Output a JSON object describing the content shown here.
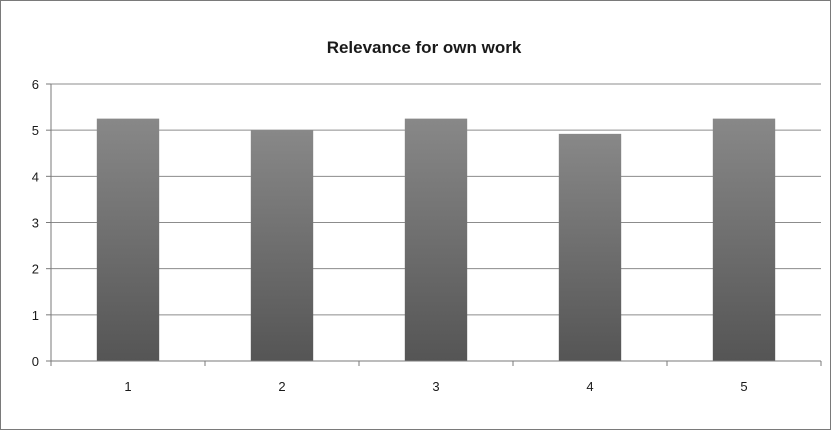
{
  "chart_data": {
    "type": "bar",
    "title": "Relevance for own work",
    "xlabel": "",
    "ylabel": "",
    "categories": [
      "1",
      "2",
      "3",
      "4",
      "5"
    ],
    "values": [
      5.25,
      5.0,
      5.25,
      4.92,
      5.25
    ],
    "ylim": [
      0,
      6
    ],
    "yticks": [
      "0",
      "1",
      "2",
      "3",
      "4",
      "5",
      "6"
    ],
    "grid": true,
    "legend": "none",
    "colors": {
      "bar_top": "#888888",
      "bar_bottom": "#555555",
      "gridline": "#8c8c8c",
      "axis": "#7a7a7a"
    }
  }
}
